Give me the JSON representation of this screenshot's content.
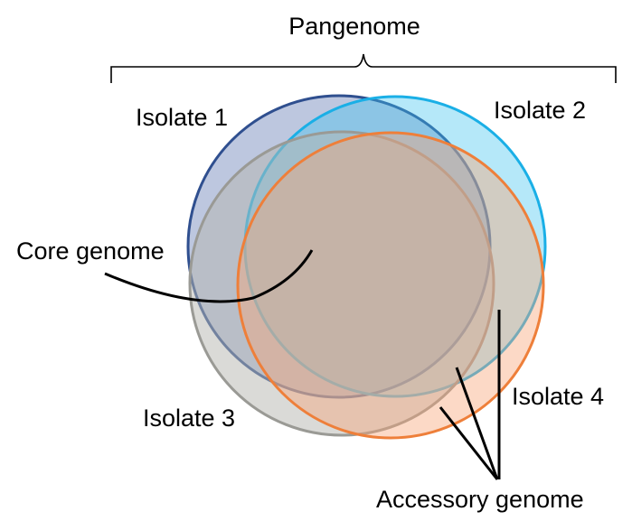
{
  "title": "Pangenome",
  "isolates": [
    {
      "label": "Isolate 1",
      "color": "#2F4F8F",
      "fill": "#5B74AE"
    },
    {
      "label": "Isolate 2",
      "color": "#1AAFE6",
      "fill": "#3CC3F0"
    },
    {
      "label": "Isolate 3",
      "color": "#9A9A95",
      "fill": "#B5B5B0"
    },
    {
      "label": "Isolate 4",
      "color": "#EE7F3A",
      "fill": "#F7A477"
    }
  ],
  "core_label": "Core genome",
  "accessory_label": "Accessory genome"
}
